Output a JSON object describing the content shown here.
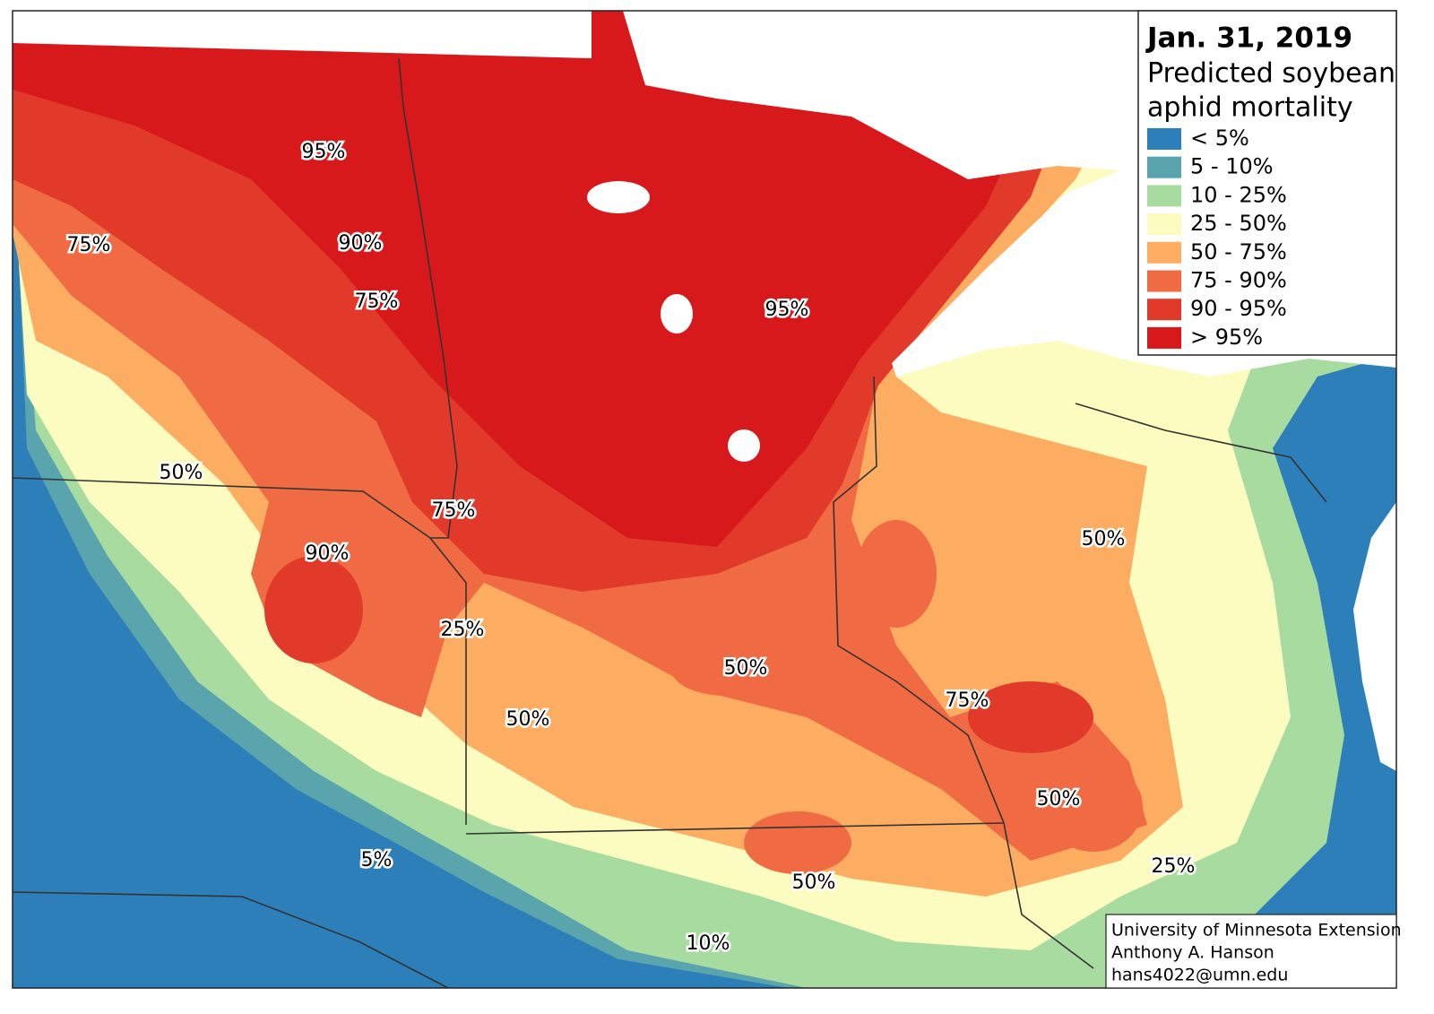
{
  "title": "Jan. 31, 2019",
  "subtitle_lines": [
    "Predicted soybean",
    "aphid mortality"
  ],
  "legend": [
    {
      "label": "< 5%",
      "color": "#2c7fb8"
    },
    {
      "label": "5 - 10%",
      "color": "#5aa4ae"
    },
    {
      "label": "10 - 25%",
      "color": "#a8dba0"
    },
    {
      "label": "25 - 50%",
      "color": "#fcfcc0"
    },
    {
      "label": "50 - 75%",
      "color": "#fdad62"
    },
    {
      "label": "75 - 90%",
      "color": "#f06a43"
    },
    {
      "label": "90 - 95%",
      "color": "#e13a2b"
    },
    {
      "label": "> 95%",
      "color": "#d7191c"
    }
  ],
  "map_labels": [
    "95%",
    "75%",
    "90%",
    "75%",
    "95%",
    "50%",
    "75%",
    "90%",
    "50%",
    "25%",
    "50%",
    "75%",
    "50%",
    "50%",
    "5%",
    "25%",
    "50%",
    "10%"
  ],
  "credits": [
    "University of Minnesota Extension",
    "Anthony A. Hanson",
    "hans4022@umn.edu"
  ]
}
